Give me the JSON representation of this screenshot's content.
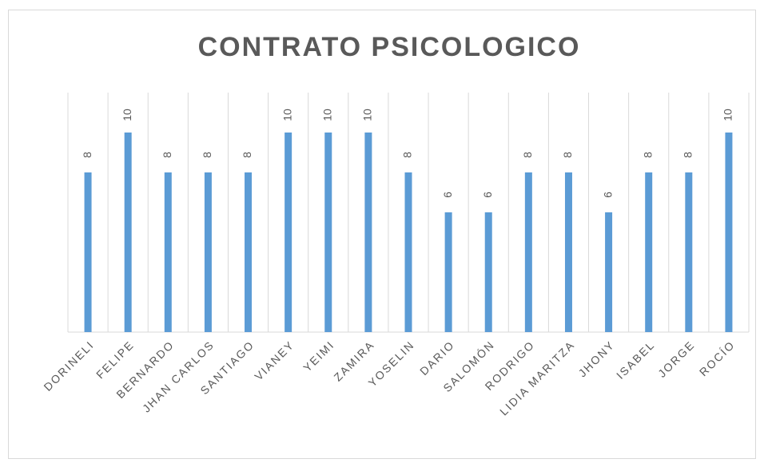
{
  "chart_data": {
    "type": "bar",
    "title": "CONTRATO PSICOLOGICO",
    "categories": [
      "DORINELI",
      "FELIPE",
      "BERNARDO",
      "JHAN CARLOS",
      "SANTIAGO",
      "VIANEY",
      "YEIMI",
      "ZAMIRA",
      "YOSELIN",
      "DARIO",
      "SALOMÓN",
      "RODRIGO",
      "LIDIA MARITZA",
      "JHONY",
      "ISABEL",
      "JORGE",
      "ROCÍO"
    ],
    "values": [
      8,
      10,
      8,
      8,
      8,
      10,
      10,
      10,
      8,
      6,
      6,
      8,
      8,
      6,
      8,
      8,
      10
    ],
    "color": "#5b9bd5",
    "ylim": [
      0,
      12
    ],
    "grid": true
  }
}
